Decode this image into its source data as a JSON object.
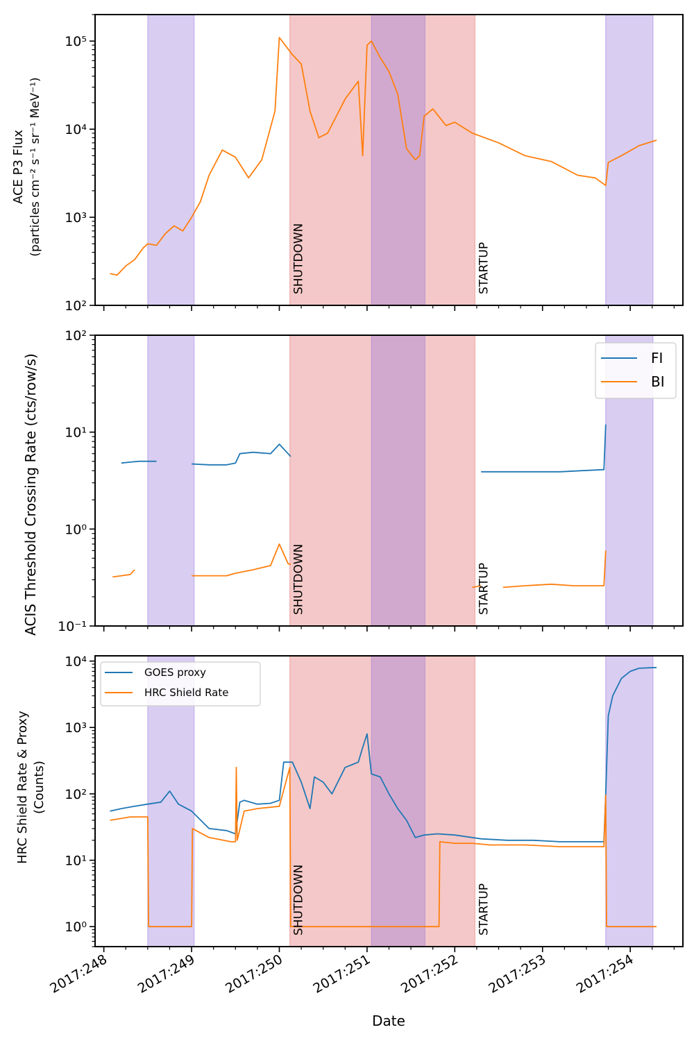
{
  "chart_data": [
    {
      "type": "line",
      "ylabel_line1": "ACE P3 Flux",
      "ylabel_line2": "(particles cm⁻² s⁻¹ sr⁻¹ MeV⁻¹)",
      "yscale": "log",
      "ylim": [
        100,
        200000
      ],
      "ytick_labels": [
        "10²",
        "10³",
        "10⁴",
        "10⁵"
      ],
      "ytick_values": [
        100,
        1000,
        10000,
        100000
      ],
      "legend": null,
      "series": [
        {
          "color": "#ff7f0e",
          "x": [
            248.07,
            248.15,
            248.25,
            248.35,
            248.45,
            248.5,
            248.6,
            248.7,
            248.8,
            248.9,
            249.0,
            249.1,
            249.2,
            249.35,
            249.5,
            249.65,
            249.8,
            249.95,
            249.98,
            250.0,
            250.15,
            250.25,
            250.35,
            250.45,
            250.55,
            250.65,
            250.75,
            250.85,
            250.9,
            250.95,
            251.0,
            251.05,
            251.15,
            251.25,
            251.35,
            251.45,
            251.55,
            251.6,
            251.65,
            251.75,
            251.9,
            252.0,
            252.2,
            252.5,
            252.8,
            253.1,
            253.4,
            253.6,
            253.72,
            253.75,
            253.9,
            254.1,
            254.3
          ],
          "y": [
            230,
            220,
            280,
            330,
            450,
            500,
            480,
            650,
            800,
            700,
            1000,
            1500,
            3000,
            5800,
            4800,
            2800,
            4500,
            16000,
            50000,
            110000,
            70000,
            55000,
            16000,
            8000,
            9000,
            14000,
            22000,
            30000,
            35000,
            5000,
            90000,
            100000,
            65000,
            45000,
            25000,
            6000,
            4500,
            5000,
            14000,
            17000,
            11000,
            12000,
            9000,
            7000,
            5000,
            4300,
            3000,
            2800,
            2300,
            4200,
            5000,
            6500,
            7500
          ]
        }
      ]
    },
    {
      "type": "line",
      "ylabel": "ACIS Threshold Crossing Rate (cts/row/s)",
      "yscale": "log",
      "ylim": [
        0.1,
        100
      ],
      "ytick_labels": [
        "10⁻¹",
        "10⁰",
        "10¹",
        "10²"
      ],
      "ytick_values": [
        0.1,
        1,
        10,
        100
      ],
      "legend": "upper right",
      "series": [
        {
          "name": "FI",
          "color": "#1f77b4",
          "segments": [
            {
              "x": [
                248.2,
                248.3,
                248.4,
                248.6
              ],
              "y": [
                4.8,
                4.9,
                5.0,
                5.0
              ]
            },
            {
              "x": [
                249.0,
                249.2,
                249.4,
                249.5,
                249.55,
                249.7,
                249.9,
                250.0,
                250.13
              ],
              "y": [
                4.7,
                4.6,
                4.6,
                4.8,
                6.0,
                6.2,
                6.0,
                7.5,
                5.6
              ]
            },
            {
              "x": [
                252.3,
                252.6,
                252.9,
                253.2,
                253.45,
                253.7,
                253.72
              ],
              "y": [
                3.9,
                3.9,
                3.9,
                3.9,
                4.0,
                4.1,
                12.0
              ]
            }
          ]
        },
        {
          "name": "BI",
          "color": "#ff7f0e",
          "segments": [
            {
              "x": [
                248.1,
                248.2,
                248.3,
                248.35
              ],
              "y": [
                0.32,
                0.33,
                0.34,
                0.38
              ]
            },
            {
              "x": [
                249.0,
                249.2,
                249.4,
                249.5,
                249.7,
                249.9,
                250.0,
                250.1,
                250.13
              ],
              "y": [
                0.33,
                0.33,
                0.33,
                0.35,
                0.38,
                0.42,
                0.7,
                0.44,
                0.43
              ]
            },
            {
              "x": [
                252.2,
                252.3
              ],
              "y": [
                0.25,
                0.26
              ]
            },
            {
              "x": [
                252.55,
                252.8,
                253.1,
                253.35,
                253.6,
                253.7,
                253.72
              ],
              "y": [
                0.25,
                0.26,
                0.27,
                0.26,
                0.26,
                0.26,
                0.6
              ]
            }
          ]
        }
      ]
    },
    {
      "type": "line",
      "ylabel_line1": "HRC Shield Rate & Proxy",
      "ylabel_line2": "(Counts)",
      "xlabel": "Date",
      "yscale": "log",
      "ylim": [
        0.5,
        12000
      ],
      "ytick_labels": [
        "10⁰",
        "10¹",
        "10²",
        "10³",
        "10⁴"
      ],
      "ytick_values": [
        1,
        10,
        100,
        1000,
        10000
      ],
      "xlim": [
        247.9,
        254.6
      ],
      "xtick_values": [
        248,
        249,
        250,
        251,
        252,
        253,
        254
      ],
      "xtick_labels": [
        "2017:248",
        "2017:249",
        "2017:250",
        "2017:251",
        "2017:252",
        "2017:253",
        "2017:254"
      ],
      "legend": "upper left",
      "series": [
        {
          "name": "GOES proxy",
          "color": "#1f77b4",
          "x": [
            248.07,
            248.2,
            248.35,
            248.5,
            248.65,
            248.75,
            248.85,
            249.0,
            249.2,
            249.4,
            249.5,
            249.55,
            249.6,
            249.75,
            249.9,
            250.0,
            250.05,
            250.15,
            250.25,
            250.35,
            250.4,
            250.5,
            250.6,
            250.75,
            250.9,
            250.95,
            251.0,
            251.05,
            251.15,
            251.25,
            251.35,
            251.45,
            251.55,
            251.65,
            251.8,
            252.0,
            252.3,
            252.6,
            252.9,
            253.2,
            253.5,
            253.7,
            253.72,
            253.75,
            253.8,
            253.9,
            254.0,
            254.1,
            254.3
          ],
          "y": [
            55,
            60,
            65,
            70,
            75,
            110,
            70,
            55,
            30,
            28,
            25,
            75,
            80,
            70,
            72,
            80,
            300,
            300,
            150,
            60,
            180,
            150,
            100,
            250,
            300,
            500,
            800,
            200,
            180,
            100,
            60,
            40,
            22,
            24,
            25,
            24,
            21,
            20,
            20,
            19,
            19,
            19,
            100,
            1500,
            3000,
            5500,
            7000,
            7800,
            8000
          ]
        },
        {
          "name": "HRC Shield Rate",
          "color": "#ff7f0e",
          "x": [
            248.07,
            248.3,
            248.5,
            248.51,
            249.0,
            249.01,
            249.2,
            249.45,
            249.5,
            249.51,
            249.52,
            249.6,
            249.75,
            250.0,
            250.12,
            250.13,
            251.0,
            251.5,
            251.82,
            251.83,
            252.0,
            252.2,
            252.4,
            252.8,
            253.2,
            253.7,
            253.72,
            253.73,
            254.3
          ],
          "y": [
            40,
            45,
            45,
            1,
            1,
            30,
            22,
            19,
            19,
            250,
            20,
            55,
            60,
            65,
            250,
            1,
            1,
            1,
            1,
            19,
            18,
            18,
            17,
            17,
            16,
            16,
            95,
            1,
            1
          ]
        }
      ]
    }
  ],
  "shaded_regions": [
    {
      "kind": "purple",
      "x0": 248.5,
      "x1": 249.03,
      "color": "#9370db"
    },
    {
      "kind": "red",
      "x0": 250.12,
      "x1": 252.23,
      "color": "#e06666"
    },
    {
      "kind": "purple",
      "x0": 251.05,
      "x1": 251.66,
      "color": "#9370db"
    },
    {
      "kind": "purple",
      "x0": 253.72,
      "x1": 254.26,
      "color": "#9370db"
    }
  ],
  "annotations": [
    {
      "text": "SHUTDOWN",
      "x": 250.12
    },
    {
      "text": "STARTUP",
      "x": 252.23
    }
  ],
  "xlabel": "Date"
}
